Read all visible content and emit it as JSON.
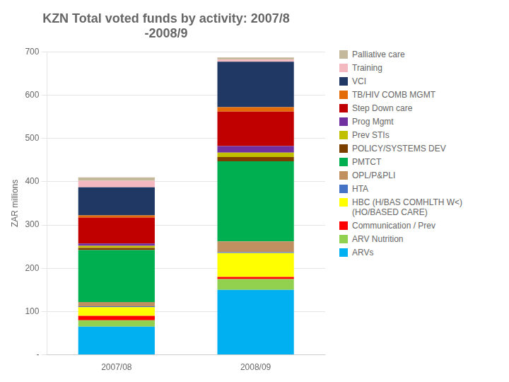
{
  "chart_data": {
    "type": "bar",
    "title": "KZN Total voted funds by activity: 2007/8\n-2008/9",
    "ylabel": "ZAR millions",
    "categories": [
      "2007/08",
      "2008/09"
    ],
    "stacked": true,
    "grid": true,
    "legend": "right",
    "ylim": [
      0,
      700
    ],
    "yticks": [
      {
        "value": 0,
        "label": "-"
      },
      100,
      200,
      300,
      400,
      500,
      600,
      700
    ],
    "series": [
      {
        "name": "ARVs",
        "color": "#00b0f0",
        "values": [
          65,
          150
        ]
      },
      {
        "name": "ARV Nutrition",
        "color": "#92d050",
        "values": [
          15,
          25
        ]
      },
      {
        "name": "Communication / Prev",
        "color": "#ff0000",
        "values": [
          10,
          5
        ]
      },
      {
        "name": "HBC (H/BAS COMHLTH W<)\n(HO/BASED CARE)",
        "color": "#ffff00",
        "values": [
          20,
          55
        ]
      },
      {
        "name": "HTA",
        "color": "#4472c4",
        "values": [
          2,
          2
        ]
      },
      {
        "name": "OPL/P&PLI",
        "color": "#c09060",
        "values": [
          10,
          25
        ]
      },
      {
        "name": "PMTCT",
        "color": "#00b050",
        "values": [
          120,
          185
        ]
      },
      {
        "name": "POLICY/SYSTEMS DEV",
        "color": "#7b3f00",
        "values": [
          5,
          10
        ]
      },
      {
        "name": "Prev STIs",
        "color": "#c0c000",
        "values": [
          5,
          10
        ]
      },
      {
        "name": "Prog Mgmt",
        "color": "#7030a0",
        "values": [
          5,
          15
        ]
      },
      {
        "name": "Step Down care",
        "color": "#c00000",
        "values": [
          60,
          80
        ]
      },
      {
        "name": "TB/HIV COMB MGMT",
        "color": "#e36c09",
        "values": [
          5,
          10
        ]
      },
      {
        "name": "VCI",
        "color": "#1f3864",
        "values": [
          65,
          105
        ]
      },
      {
        "name": "Training",
        "color": "#f4b8c1",
        "values": [
          15,
          5
        ]
      },
      {
        "name": "Palliative care",
        "color": "#c4b99a",
        "values": [
          8,
          5
        ]
      }
    ]
  }
}
